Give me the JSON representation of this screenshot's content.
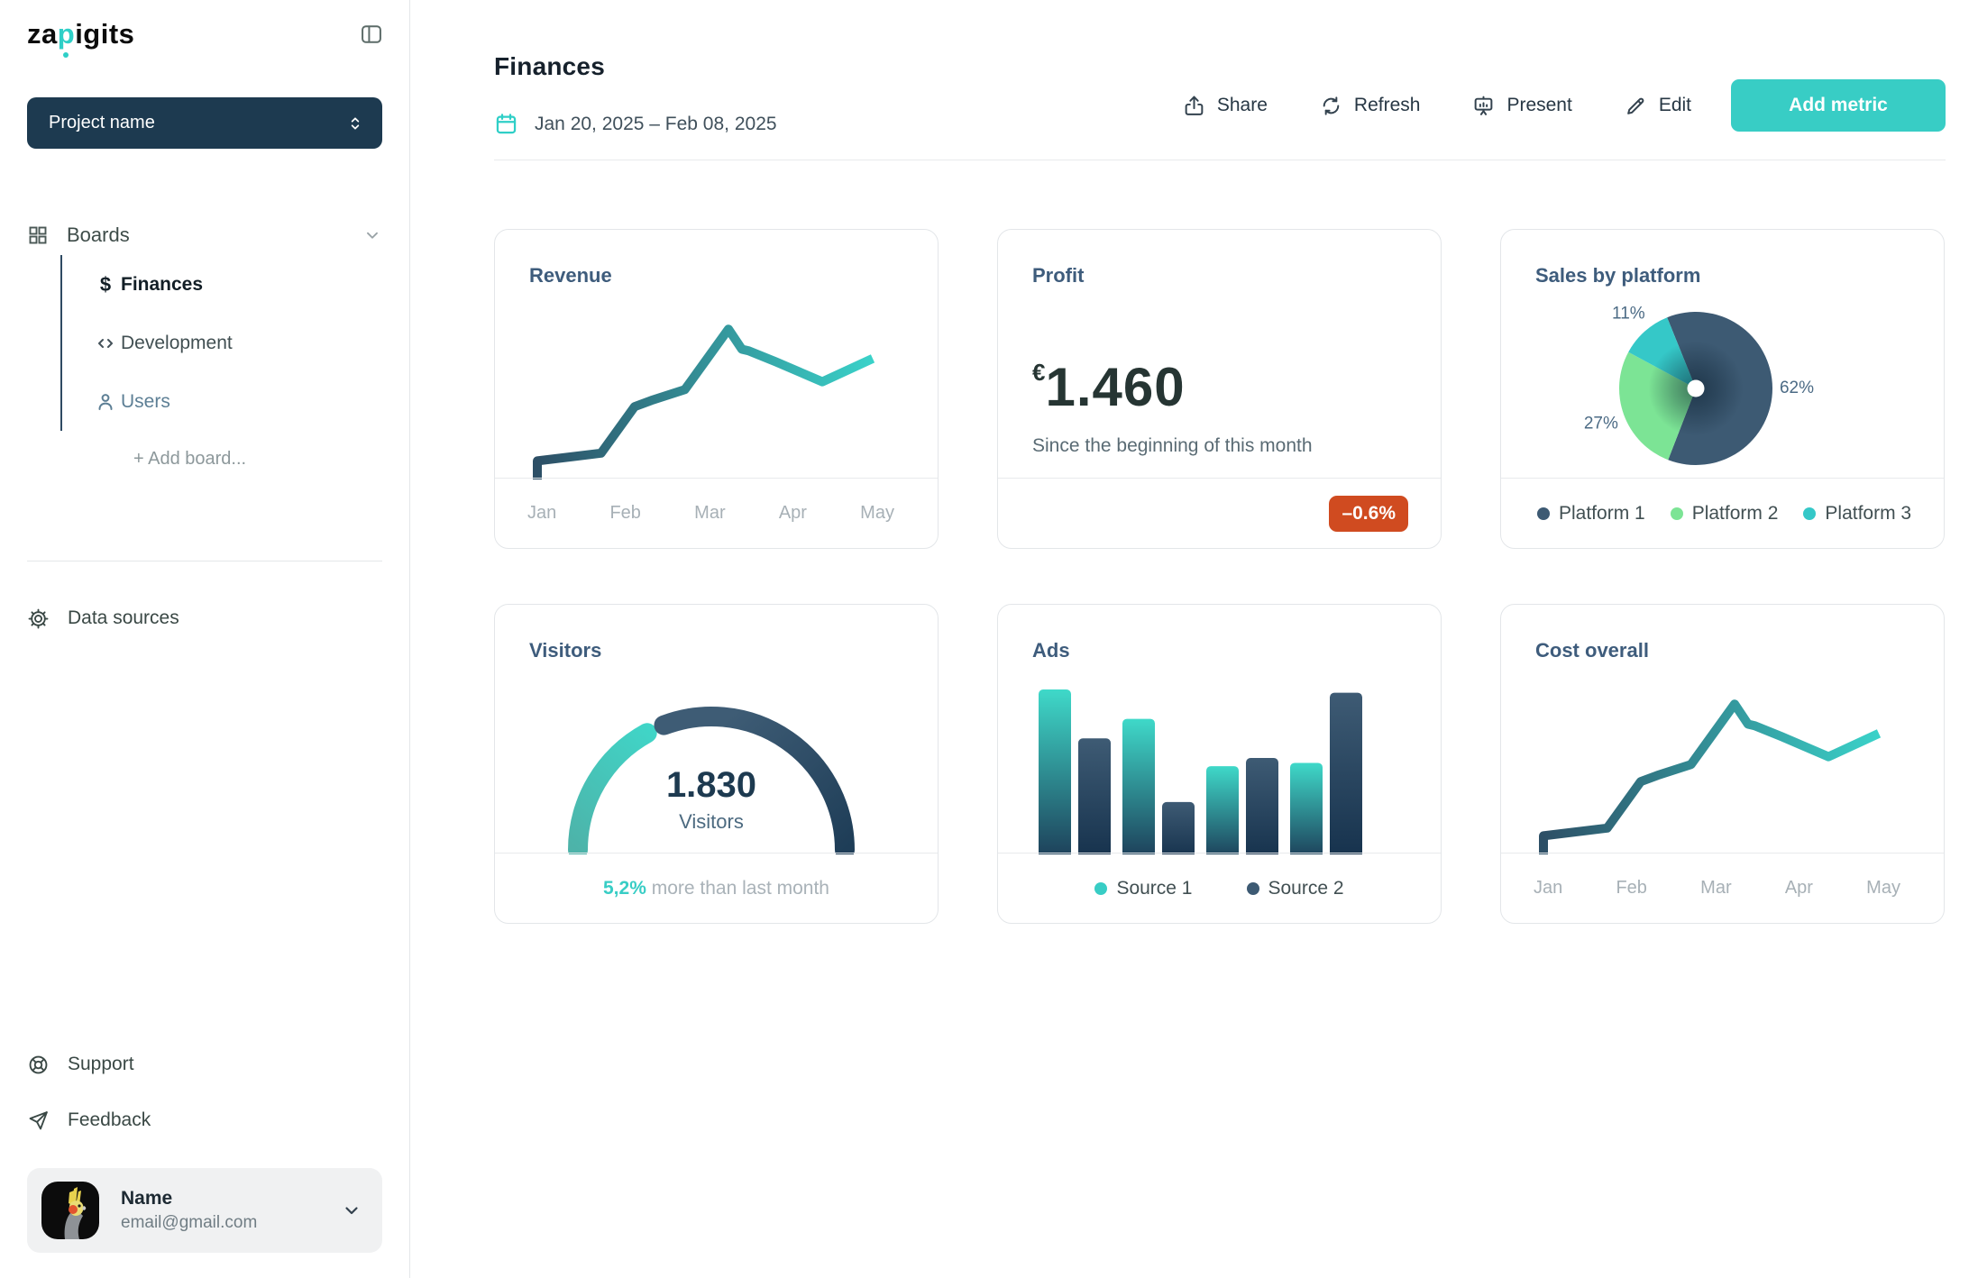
{
  "app": {
    "logo_prefix": "za",
    "logo_accent": "p",
    "logo_suffix": "igits"
  },
  "colors": {
    "accent": "#38cdc5",
    "slate": "#3d5a73",
    "green": "#7ce495",
    "teal": "#35c8c8",
    "badge": "#d04b20"
  },
  "sidebar": {
    "project_selector": "Project name",
    "boards_label": "Boards",
    "board_items": [
      {
        "label": "Finances",
        "icon": "dollar-icon"
      },
      {
        "label": "Development",
        "icon": "code-icon"
      },
      {
        "label": "Users",
        "icon": "user-icon"
      }
    ],
    "add_board_label": "+ Add board...",
    "data_sources_label": "Data sources",
    "support_label": "Support",
    "feedback_label": "Feedback",
    "profile": {
      "name": "Name",
      "email": "email@gmail.com"
    }
  },
  "header": {
    "title": "Finances",
    "date_range": "Jan 20, 2025 – Feb 08, 2025",
    "actions": [
      {
        "label": "Share",
        "icon": "share-icon"
      },
      {
        "label": "Refresh",
        "icon": "refresh-icon"
      },
      {
        "label": "Present",
        "icon": "present-icon"
      },
      {
        "label": "Edit",
        "icon": "edit-icon"
      }
    ],
    "primary_action": "Add metric"
  },
  "cards": {
    "profit": {
      "title": "Profit",
      "currency": "€",
      "value": "1.460",
      "subtitle": "Since the beginning of this month",
      "change": "–0.6%",
      "change_direction": "negative"
    }
  },
  "chart_data": [
    {
      "id": "revenue",
      "type": "line",
      "title": "Revenue",
      "x_labels": [
        "Jan",
        "Feb",
        "Mar",
        "Apr",
        "May"
      ],
      "ylim": [
        0,
        100
      ],
      "grid": false,
      "gradient": [
        "#2d4f66",
        "#3ad2c9"
      ],
      "points": [
        [
          0,
          0
        ],
        [
          0,
          12
        ],
        [
          19,
          17
        ],
        [
          29,
          47
        ],
        [
          34,
          51
        ],
        [
          44,
          58
        ],
        [
          57,
          97
        ],
        [
          61,
          84
        ],
        [
          63,
          83
        ],
        [
          71,
          76
        ],
        [
          85,
          63
        ],
        [
          100,
          78
        ]
      ]
    },
    {
      "id": "sales",
      "type": "pie",
      "title": "Sales by platform",
      "start_angle": -22,
      "slices": [
        {
          "label": "Platform 1",
          "value": 62,
          "pct_label": "62%",
          "color": "#3d5a73"
        },
        {
          "label": "Platform 2",
          "value": 27,
          "pct_label": "27%",
          "color": "#7ce495"
        },
        {
          "label": "Platform 3",
          "value": 11,
          "pct_label": "11%",
          "color": "#35c8c8"
        }
      ],
      "legend_position": "bottom"
    },
    {
      "id": "visitors",
      "type": "gauge",
      "title": "Visitors",
      "value": "1.830",
      "value_label": "Visitors",
      "percent": 34,
      "footer_highlight": "5,2%",
      "footer_text": "more than last month",
      "fill_gradient": [
        "#4db3a9",
        "#3fd8ca"
      ],
      "track_gradient": [
        "#3e5c75",
        "#1e3d57"
      ]
    },
    {
      "id": "ads",
      "type": "bar",
      "title": "Ads",
      "ylim": [
        0,
        100
      ],
      "series": [
        {
          "name": "Source 1",
          "color": "#38cdc5",
          "gradient": [
            "#3fd9c9",
            "#1d3f59"
          ],
          "values": [
            100,
            82,
            53,
            55
          ]
        },
        {
          "name": "Source 2",
          "color": "#3d5a73",
          "gradient": [
            "#3e5b74",
            "#16324d"
          ],
          "values": [
            70,
            31,
            58,
            98
          ]
        }
      ],
      "legend_position": "bottom"
    },
    {
      "id": "cost",
      "type": "line",
      "title": "Cost overall",
      "x_labels": [
        "Jan",
        "Feb",
        "Mar",
        "Apr",
        "May"
      ],
      "ylim": [
        0,
        100
      ],
      "grid": false,
      "gradient": [
        "#2d4f66",
        "#3ad2c9"
      ],
      "points": [
        [
          0,
          0
        ],
        [
          0,
          12
        ],
        [
          19,
          17
        ],
        [
          29,
          47
        ],
        [
          34,
          51
        ],
        [
          44,
          58
        ],
        [
          57,
          97
        ],
        [
          61,
          84
        ],
        [
          63,
          83
        ],
        [
          71,
          76
        ],
        [
          85,
          63
        ],
        [
          100,
          78
        ]
      ]
    }
  ]
}
